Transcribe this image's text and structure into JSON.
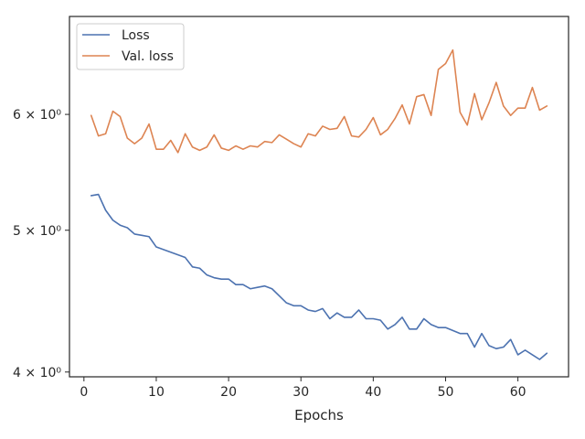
{
  "chart_data": {
    "type": "line",
    "title": "",
    "xlabel": "Epochs",
    "ylabel": "",
    "yscale": "log",
    "xlim": [
      -2,
      67
    ],
    "ylim": [
      3.97,
      7.0
    ],
    "grid": false,
    "legend_position": "top-left",
    "x_ticks": [
      0,
      10,
      20,
      30,
      40,
      50,
      60
    ],
    "x_tick_labels": [
      "0",
      "10",
      "20",
      "30",
      "40",
      "50",
      "60"
    ],
    "y_ticks": [
      4,
      5,
      6
    ],
    "y_tick_labels": [
      "4 × 10⁰",
      "5 × 10⁰",
      "6 × 10⁰"
    ],
    "x": [
      1,
      2,
      3,
      4,
      5,
      6,
      7,
      8,
      9,
      10,
      11,
      12,
      13,
      14,
      15,
      16,
      17,
      18,
      19,
      20,
      21,
      22,
      23,
      24,
      25,
      26,
      27,
      28,
      29,
      30,
      31,
      32,
      33,
      34,
      35,
      36,
      37,
      38,
      39,
      40,
      41,
      42,
      43,
      44,
      45,
      46,
      47,
      48,
      49,
      50,
      51,
      52,
      53,
      54,
      55,
      56,
      57,
      58,
      59,
      60,
      61,
      62,
      63,
      64
    ],
    "series": [
      {
        "name": "Loss",
        "color": "#4c72b0",
        "values": [
          5.28,
          5.29,
          5.16,
          5.08,
          5.04,
          5.02,
          4.97,
          4.96,
          4.95,
          4.87,
          4.85,
          4.83,
          4.81,
          4.79,
          4.72,
          4.71,
          4.66,
          4.64,
          4.63,
          4.63,
          4.59,
          4.59,
          4.56,
          4.57,
          4.58,
          4.56,
          4.51,
          4.46,
          4.44,
          4.44,
          4.41,
          4.4,
          4.42,
          4.35,
          4.39,
          4.36,
          4.36,
          4.41,
          4.35,
          4.35,
          4.34,
          4.28,
          4.31,
          4.36,
          4.28,
          4.28,
          4.35,
          4.31,
          4.29,
          4.29,
          4.27,
          4.25,
          4.25,
          4.16,
          4.25,
          4.17,
          4.15,
          4.16,
          4.21,
          4.11,
          4.14,
          4.11,
          4.08,
          4.12
        ]
      },
      {
        "name": "Val. loss",
        "color": "#dd8452",
        "values": [
          5.99,
          5.8,
          5.82,
          6.03,
          5.98,
          5.78,
          5.73,
          5.78,
          5.91,
          5.68,
          5.68,
          5.76,
          5.65,
          5.82,
          5.7,
          5.67,
          5.7,
          5.81,
          5.69,
          5.67,
          5.71,
          5.68,
          5.71,
          5.7,
          5.75,
          5.74,
          5.81,
          5.77,
          5.73,
          5.7,
          5.82,
          5.8,
          5.89,
          5.86,
          5.87,
          5.98,
          5.8,
          5.79,
          5.86,
          5.97,
          5.81,
          5.86,
          5.96,
          6.09,
          5.91,
          6.17,
          6.19,
          5.99,
          6.44,
          6.5,
          6.64,
          6.02,
          5.9,
          6.2,
          5.95,
          6.11,
          6.31,
          6.08,
          5.99,
          6.06,
          6.06,
          6.26,
          6.04,
          6.08
        ]
      }
    ]
  }
}
